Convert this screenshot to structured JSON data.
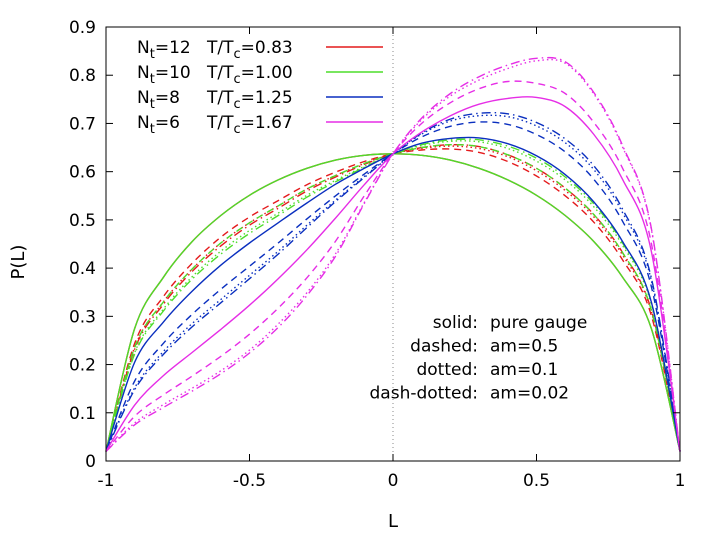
{
  "chart_data": {
    "type": "line",
    "xlabel": "L",
    "ylabel": "P(L)",
    "xlim": [
      -1,
      1
    ],
    "ylim": [
      0,
      0.9
    ],
    "x_ticks": [
      -1,
      -0.5,
      0,
      0.5,
      1
    ],
    "x_tick_labels": [
      "-1",
      "-0.5",
      "0",
      "0.5",
      "1"
    ],
    "y_ticks": [
      0,
      0.1,
      0.2,
      0.3,
      0.4,
      0.5,
      0.6,
      0.7,
      0.8,
      0.9
    ],
    "y_tick_labels": [
      "0",
      "0.1",
      "0.2",
      "0.3",
      "0.4",
      "0.5",
      "0.6",
      "0.7",
      "0.8",
      "0.9"
    ],
    "legend_position": "top-left",
    "grid": false,
    "vertical_marker_x": 0,
    "legend": [
      {
        "nt_main": "N",
        "nt_sub": "t",
        "nt_val": "=12",
        "t_main": "T/T",
        "t_sub": "c",
        "t_val": "=0.83",
        "color": "#e41a1c"
      },
      {
        "nt_main": "N",
        "nt_sub": "t",
        "nt_val": "=10",
        "t_main": "T/T",
        "t_sub": "c",
        "t_val": "=1.00",
        "color": "#4ddd2a"
      },
      {
        "nt_main": "N",
        "nt_sub": "t",
        "nt_val": "=8",
        "t_main": "T/T",
        "t_sub": "c",
        "t_val": "=1.25",
        "color": "#0a2fbf"
      },
      {
        "nt_main": "N",
        "nt_sub": "t",
        "nt_val": "=6",
        "t_main": "T/T",
        "t_sub": "c",
        "t_val": "=1.67",
        "color": "#e62ee6"
      }
    ],
    "annotations": [
      {
        "key": "solid:",
        "value": "pure gauge"
      },
      {
        "key": "dashed:",
        "value": "am=0.5"
      },
      {
        "key": "dotted:",
        "value": "am=0.1"
      },
      {
        "key": "dash-dotted:",
        "value": "am=0.02"
      }
    ],
    "series": [
      {
        "temperature_index": 0,
        "style": "solid",
        "color": "#e41a1c",
        "x": [
          -1,
          -0.9,
          -0.8,
          -0.7,
          -0.6,
          -0.5,
          -0.4,
          -0.3,
          -0.2,
          -0.1,
          0,
          0.1,
          0.2,
          0.3,
          0.4,
          0.5,
          0.6,
          0.7,
          0.8,
          0.9,
          1
        ],
        "y": [
          0.02,
          0.275,
          0.381,
          0.455,
          0.509,
          0.551,
          0.583,
          0.607,
          0.624,
          0.634,
          0.637,
          0.634,
          0.624,
          0.607,
          0.583,
          0.551,
          0.509,
          0.455,
          0.381,
          0.275,
          0.02
        ]
      },
      {
        "temperature_index": 0,
        "style": "dashed",
        "color": "#e41a1c",
        "x": [
          -1,
          -0.9,
          -0.8,
          -0.7,
          -0.6,
          -0.5,
          -0.4,
          -0.3,
          -0.2,
          -0.1,
          0,
          0.1,
          0.2,
          0.3,
          0.4,
          0.5,
          0.6,
          0.7,
          0.8,
          0.9,
          1
        ],
        "y": [
          0.02,
          0.244,
          0.341,
          0.41,
          0.464,
          0.506,
          0.54,
          0.573,
          0.599,
          0.621,
          0.637,
          0.645,
          0.647,
          0.64,
          0.621,
          0.591,
          0.55,
          0.495,
          0.417,
          0.302,
          0.02
        ]
      },
      {
        "temperature_index": 0,
        "style": "dotted",
        "color": "#e41a1c",
        "x": [
          -1,
          -0.9,
          -0.8,
          -0.7,
          -0.6,
          -0.5,
          -0.4,
          -0.3,
          -0.2,
          -0.1,
          0,
          0.1,
          0.2,
          0.3,
          0.4,
          0.5,
          0.6,
          0.7,
          0.8,
          0.9,
          1
        ],
        "y": [
          0.02,
          0.236,
          0.33,
          0.398,
          0.452,
          0.494,
          0.529,
          0.564,
          0.592,
          0.617,
          0.637,
          0.648,
          0.653,
          0.648,
          0.631,
          0.602,
          0.561,
          0.506,
          0.427,
          0.31,
          0.02
        ]
      },
      {
        "temperature_index": 0,
        "style": "dashdot",
        "color": "#e41a1c",
        "x": [
          -1,
          -0.9,
          -0.8,
          -0.7,
          -0.6,
          -0.5,
          -0.4,
          -0.3,
          -0.2,
          -0.1,
          0,
          0.1,
          0.2,
          0.3,
          0.4,
          0.5,
          0.6,
          0.7,
          0.8,
          0.9,
          1
        ],
        "y": [
          0.02,
          0.232,
          0.325,
          0.393,
          0.446,
          0.489,
          0.524,
          0.56,
          0.589,
          0.615,
          0.637,
          0.65,
          0.656,
          0.652,
          0.635,
          0.607,
          0.566,
          0.511,
          0.432,
          0.313,
          0.02
        ]
      },
      {
        "temperature_index": 1,
        "style": "solid",
        "color": "#4ddd2a",
        "x": [
          -1,
          -0.9,
          -0.8,
          -0.7,
          -0.6,
          -0.5,
          -0.4,
          -0.3,
          -0.2,
          -0.1,
          0,
          0.1,
          0.2,
          0.3,
          0.4,
          0.5,
          0.6,
          0.7,
          0.8,
          0.9,
          1
        ],
        "y": [
          0.02,
          0.275,
          0.381,
          0.455,
          0.509,
          0.551,
          0.583,
          0.607,
          0.624,
          0.634,
          0.637,
          0.634,
          0.624,
          0.607,
          0.583,
          0.551,
          0.509,
          0.455,
          0.381,
          0.275,
          0.02
        ]
      },
      {
        "temperature_index": 1,
        "style": "dashed",
        "color": "#4ddd2a",
        "x": [
          -1,
          -0.9,
          -0.8,
          -0.7,
          -0.6,
          -0.5,
          -0.4,
          -0.3,
          -0.2,
          -0.1,
          0,
          0.1,
          0.2,
          0.3,
          0.4,
          0.5,
          0.6,
          0.7,
          0.8,
          0.9,
          1
        ],
        "y": [
          0.02,
          0.236,
          0.33,
          0.398,
          0.452,
          0.494,
          0.529,
          0.564,
          0.592,
          0.617,
          0.637,
          0.65,
          0.656,
          0.652,
          0.635,
          0.607,
          0.566,
          0.511,
          0.432,
          0.313,
          0.02
        ]
      },
      {
        "temperature_index": 1,
        "style": "dotted",
        "color": "#4ddd2a",
        "x": [
          -1,
          -0.9,
          -0.8,
          -0.7,
          -0.6,
          -0.5,
          -0.4,
          -0.3,
          -0.2,
          -0.1,
          0,
          0.1,
          0.2,
          0.3,
          0.4,
          0.5,
          0.6,
          0.7,
          0.8,
          0.9,
          1
        ],
        "y": [
          0.02,
          0.225,
          0.315,
          0.382,
          0.435,
          0.478,
          0.514,
          0.551,
          0.582,
          0.611,
          0.637,
          0.654,
          0.663,
          0.662,
          0.648,
          0.622,
          0.583,
          0.527,
          0.447,
          0.325,
          0.02
        ]
      },
      {
        "temperature_index": 1,
        "style": "dashdot",
        "color": "#4ddd2a",
        "x": [
          -1,
          -0.9,
          -0.8,
          -0.7,
          -0.6,
          -0.5,
          -0.4,
          -0.3,
          -0.2,
          -0.1,
          0,
          0.1,
          0.2,
          0.3,
          0.4,
          0.5,
          0.6,
          0.7,
          0.8,
          0.9,
          1
        ],
        "y": [
          0.02,
          0.222,
          0.311,
          0.377,
          0.429,
          0.472,
          0.509,
          0.547,
          0.579,
          0.609,
          0.637,
          0.656,
          0.666,
          0.666,
          0.653,
          0.628,
          0.589,
          0.533,
          0.452,
          0.329,
          0.02
        ]
      },
      {
        "temperature_index": 2,
        "style": "solid",
        "color": "#0a2fbf",
        "x": [
          -1,
          -0.9,
          -0.8,
          -0.7,
          -0.6,
          -0.5,
          -0.4,
          -0.3,
          -0.2,
          -0.1,
          0,
          0.1,
          0.2,
          0.3,
          0.4,
          0.5,
          0.6,
          0.7,
          0.8,
          0.9,
          1
        ],
        "y": [
          0.02,
          0.205,
          0.288,
          0.352,
          0.406,
          0.452,
          0.494,
          0.535,
          0.574,
          0.607,
          0.637,
          0.659,
          0.669,
          0.67,
          0.658,
          0.633,
          0.594,
          0.537,
          0.455,
          0.33,
          0.02
        ]
      },
      {
        "temperature_index": 2,
        "style": "dashed",
        "color": "#0a2fbf",
        "x": [
          -1,
          -0.9,
          -0.8,
          -0.7,
          -0.6,
          -0.5,
          -0.4,
          -0.3,
          -0.2,
          -0.1,
          0,
          0.1,
          0.2,
          0.3,
          0.4,
          0.5,
          0.6,
          0.7,
          0.8,
          0.9,
          1
        ],
        "y": [
          0.02,
          0.166,
          0.244,
          0.304,
          0.356,
          0.404,
          0.452,
          0.502,
          0.55,
          0.595,
          0.637,
          0.672,
          0.694,
          0.703,
          0.698,
          0.677,
          0.641,
          0.584,
          0.497,
          0.362,
          0.02
        ]
      },
      {
        "temperature_index": 2,
        "style": "dotted",
        "color": "#0a2fbf",
        "x": [
          -1,
          -0.9,
          -0.8,
          -0.7,
          -0.6,
          -0.5,
          -0.4,
          -0.3,
          -0.2,
          -0.1,
          0,
          0.1,
          0.2,
          0.3,
          0.4,
          0.5,
          0.6,
          0.7,
          0.8,
          0.9,
          1
        ],
        "y": [
          0.02,
          0.152,
          0.227,
          0.285,
          0.335,
          0.385,
          0.435,
          0.489,
          0.541,
          0.59,
          0.637,
          0.678,
          0.705,
          0.716,
          0.714,
          0.695,
          0.66,
          0.604,
          0.515,
          0.375,
          0.02
        ]
      },
      {
        "temperature_index": 2,
        "style": "dashdot",
        "color": "#0a2fbf",
        "x": [
          -1,
          -0.9,
          -0.8,
          -0.7,
          -0.6,
          -0.5,
          -0.4,
          -0.3,
          -0.2,
          -0.1,
          0,
          0.1,
          0.2,
          0.3,
          0.4,
          0.5,
          0.6,
          0.7,
          0.8,
          0.9,
          1
        ],
        "y": [
          0.02,
          0.148,
          0.221,
          0.278,
          0.328,
          0.378,
          0.429,
          0.484,
          0.538,
          0.588,
          0.637,
          0.68,
          0.709,
          0.721,
          0.72,
          0.702,
          0.668,
          0.612,
          0.522,
          0.38,
          0.02
        ]
      },
      {
        "temperature_index": 3,
        "style": "solid",
        "color": "#e62ee6",
        "x": [
          -1,
          -0.9,
          -0.8,
          -0.7,
          -0.6,
          -0.5,
          -0.4,
          -0.3,
          -0.2,
          -0.1,
          0,
          0.1,
          0.2,
          0.3,
          0.4,
          0.5,
          0.6,
          0.7,
          0.8,
          0.9,
          1
        ],
        "y": [
          0.02,
          0.116,
          0.177,
          0.225,
          0.273,
          0.323,
          0.378,
          0.438,
          0.504,
          0.573,
          0.637,
          0.682,
          0.716,
          0.74,
          0.752,
          0.754,
          0.735,
          0.677,
          0.584,
          0.435,
          0.02
        ]
      },
      {
        "temperature_index": 3,
        "style": "dashed",
        "color": "#e62ee6",
        "x": [
          -1,
          -0.9,
          -0.8,
          -0.7,
          -0.6,
          -0.5,
          -0.4,
          -0.3,
          -0.2,
          -0.1,
          0,
          0.1,
          0.2,
          0.3,
          0.4,
          0.5,
          0.6,
          0.7,
          0.8,
          0.9,
          1
        ],
        "y": [
          0.02,
          0.093,
          0.137,
          0.176,
          0.217,
          0.263,
          0.317,
          0.38,
          0.456,
          0.55,
          0.637,
          0.7,
          0.743,
          0.772,
          0.787,
          0.783,
          0.762,
          0.702,
          0.607,
          0.452,
          0.02
        ]
      },
      {
        "temperature_index": 3,
        "style": "dotted",
        "color": "#e62ee6",
        "x": [
          -1,
          -0.9,
          -0.8,
          -0.7,
          -0.6,
          -0.5,
          -0.4,
          -0.3,
          -0.2,
          -0.1,
          0,
          0.1,
          0.2,
          0.3,
          0.4,
          0.5,
          0.6,
          0.7,
          0.8,
          0.9,
          1
        ],
        "y": [
          0.02,
          0.079,
          0.117,
          0.151,
          0.187,
          0.23,
          0.284,
          0.349,
          0.43,
          0.536,
          0.637,
          0.708,
          0.757,
          0.79,
          0.814,
          0.83,
          0.825,
          0.761,
          0.651,
          0.481,
          0.02
        ]
      },
      {
        "temperature_index": 3,
        "style": "dashdot",
        "color": "#e62ee6",
        "x": [
          -1,
          -0.9,
          -0.8,
          -0.7,
          -0.6,
          -0.5,
          -0.4,
          -0.3,
          -0.2,
          -0.1,
          0,
          0.1,
          0.2,
          0.3,
          0.4,
          0.5,
          0.6,
          0.7,
          0.8,
          0.9,
          1
        ],
        "y": [
          0.02,
          0.075,
          0.111,
          0.145,
          0.181,
          0.224,
          0.277,
          0.343,
          0.425,
          0.534,
          0.637,
          0.711,
          0.762,
          0.797,
          0.821,
          0.835,
          0.828,
          0.764,
          0.654,
          0.483,
          0.02
        ]
      }
    ]
  }
}
